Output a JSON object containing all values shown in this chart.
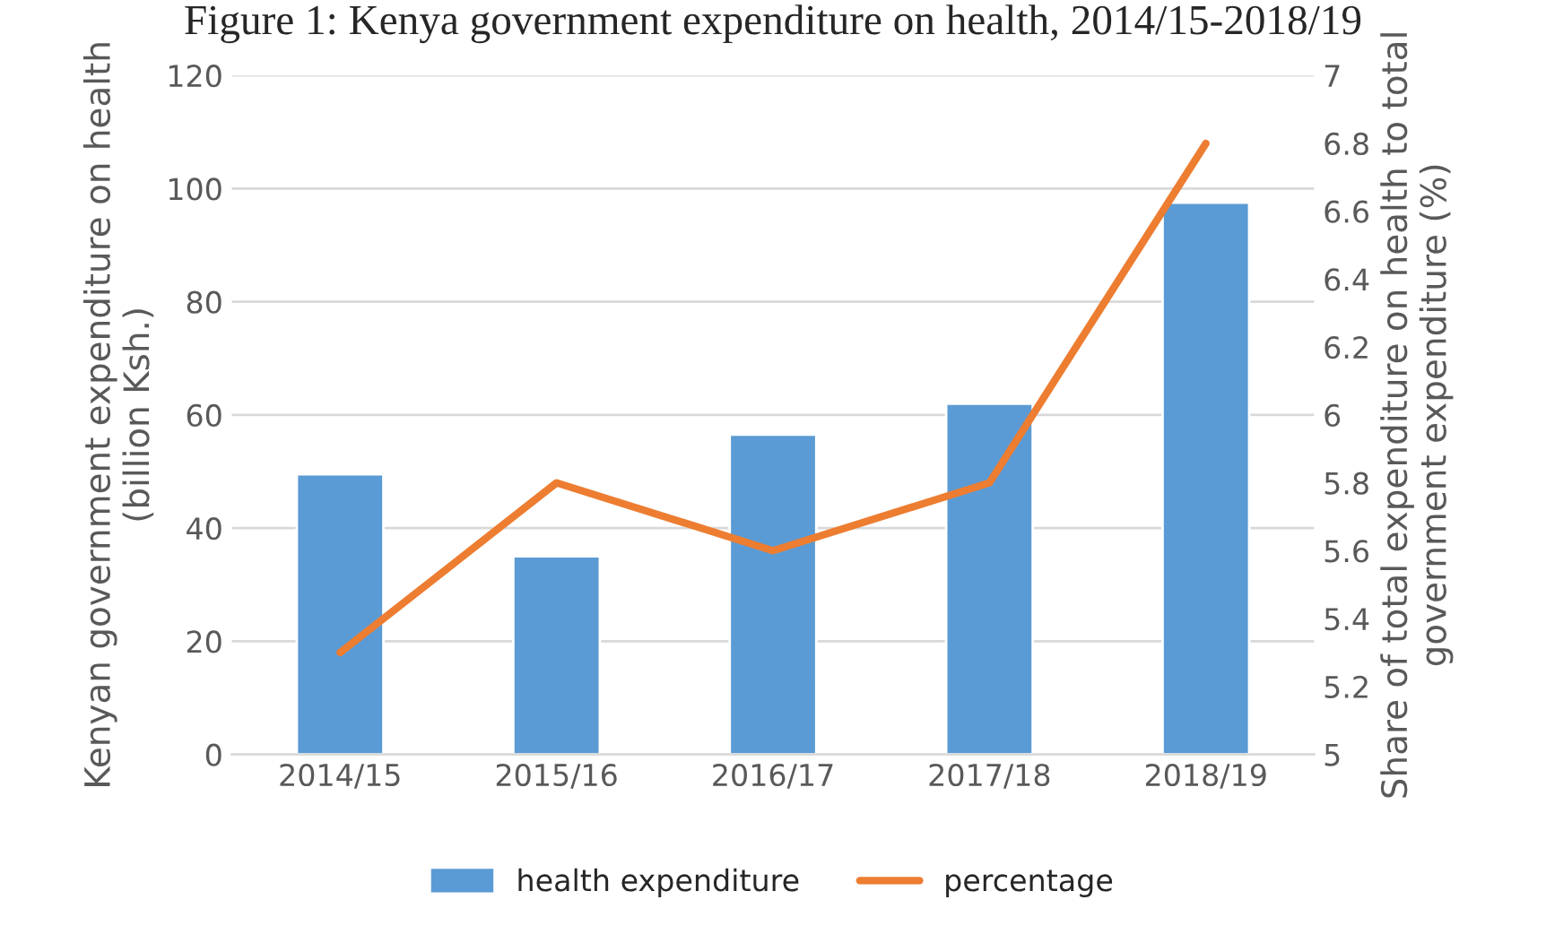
{
  "chart_data": {
    "type": "bar",
    "title": "Figure 1: Kenya government expenditure on health, 2014/15-2018/19",
    "categories": [
      "2014/15",
      "2015/16",
      "2016/17",
      "2017/18",
      "2018/19"
    ],
    "series": [
      {
        "name": "health expenditure",
        "color": "#5b9bd5",
        "values": [
          49.5,
          35,
          56.5,
          62,
          97.5
        ]
      },
      {
        "name": "percentage",
        "type": "line",
        "axis": "y2",
        "color": "#ed7d31",
        "values": [
          5.3,
          5.8,
          5.6,
          5.8,
          6.8
        ]
      }
    ],
    "ylabel": "Kenyan government expenditure on health (billion Ksh.)",
    "y2label": "Share of total expenditure on health to total government expenditure (%)",
    "ylim": [
      0,
      120
    ],
    "yticks": [
      0,
      20,
      40,
      60,
      80,
      100,
      120
    ],
    "y2lim": [
      5,
      7
    ],
    "y2ticks": [
      5,
      5.2,
      5.4,
      5.6,
      5.8,
      6,
      6.2,
      6.4,
      6.6,
      6.8,
      7
    ],
    "grid": "y",
    "legend": "bottom",
    "marker": "none",
    "line_style": "solid"
  }
}
